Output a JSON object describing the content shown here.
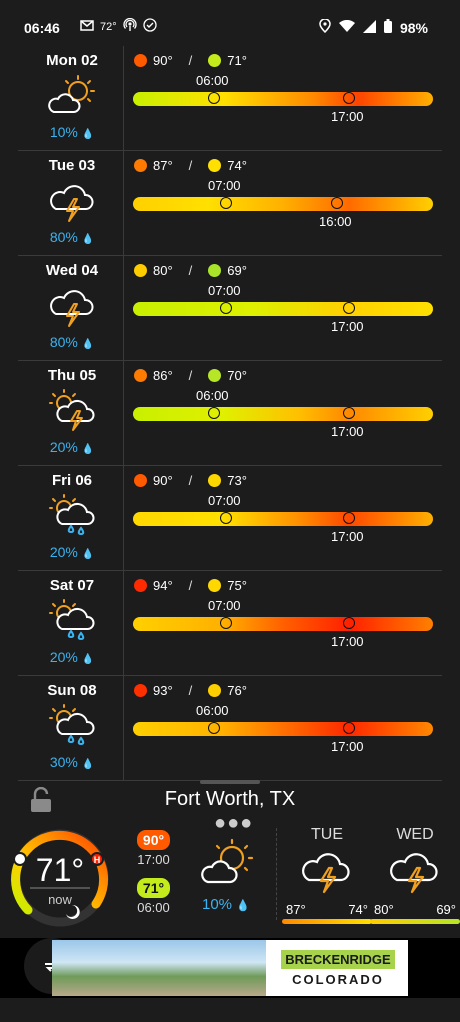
{
  "status": {
    "time": "06:46",
    "temp": "72°",
    "battery": "98%"
  },
  "days": [
    {
      "label": "Mon 02",
      "icon": "partly-sunny-icon",
      "precip": "10%",
      "high": "90°",
      "low": "71°",
      "high_color": "#ff5a00",
      "low_color": "#c4ec1c",
      "sunrise": "06:00",
      "sunset": "17:00",
      "sr_frac": 0.27,
      "ss_frac": 0.72,
      "bar": "linear-gradient(90deg,#c8f000 0%,#ffe000 30%,#ff8a00 60%,#ff4400 75%,#ffb000 100%)"
    },
    {
      "label": "Tue 03",
      "icon": "thunderstorm-icon",
      "precip": "80%",
      "high": "87°",
      "low": "74°",
      "high_color": "#ff7a00",
      "low_color": "#ffe000",
      "sunrise": "07:00",
      "sunset": "16:00",
      "sr_frac": 0.31,
      "ss_frac": 0.68,
      "bar": "linear-gradient(90deg,#ffd000 0%,#ffe000 25%,#ffb000 50%,#ff6a00 72%,#ffd000 100%)"
    },
    {
      "label": "Wed 04",
      "icon": "thunderstorm-icon",
      "precip": "80%",
      "high": "80°",
      "low": "69°",
      "high_color": "#ffcc00",
      "low_color": "#a9e42a",
      "sunrise": "07:00",
      "sunset": "17:00",
      "sr_frac": 0.31,
      "ss_frac": 0.72,
      "bar": "linear-gradient(90deg,#c8f000 0%,#ddf000 40%,#ffd000 70%,#ffe000 100%)"
    },
    {
      "label": "Thu 05",
      "icon": "sun-thunderstorm-icon",
      "precip": "20%",
      "high": "86°",
      "low": "70°",
      "high_color": "#ff7a00",
      "low_color": "#b6e626",
      "sunrise": "06:00",
      "sunset": "17:00",
      "sr_frac": 0.27,
      "ss_frac": 0.72,
      "bar": "linear-gradient(90deg,#c8f000 0%,#e0f000 30%,#ffc000 55%,#ff8800 72%,#ffd000 100%)"
    },
    {
      "label": "Fri 06",
      "icon": "sun-rain-icon",
      "precip": "20%",
      "high": "90°",
      "low": "73°",
      "high_color": "#ff5a00",
      "low_color": "#ffd800",
      "sunrise": "07:00",
      "sunset": "17:00",
      "sr_frac": 0.31,
      "ss_frac": 0.72,
      "bar": "linear-gradient(90deg,#ffd800 0%,#ffe000 30%,#ff9000 55%,#ff4800 72%,#ffb000 100%)"
    },
    {
      "label": "Sat 07",
      "icon": "sun-rain-icon",
      "precip": "20%",
      "high": "94°",
      "low": "75°",
      "high_color": "#ff2a00",
      "low_color": "#ffd800",
      "sunrise": "07:00",
      "sunset": "17:00",
      "sr_frac": 0.31,
      "ss_frac": 0.72,
      "bar": "linear-gradient(90deg,#ffd000 0%,#ffb000 30%,#ff6000 50%,#ff2000 72%,#ff8000 100%)"
    },
    {
      "label": "Sun 08",
      "icon": "sun-rain-icon",
      "precip": "30%",
      "high": "93°",
      "low": "76°",
      "high_color": "#ff3000",
      "low_color": "#ffd000",
      "sunrise": "06:00",
      "sunset": "17:00",
      "sr_frac": 0.27,
      "ss_frac": 0.72,
      "bar": "linear-gradient(90deg,#ffd000 0%,#ffb000 30%,#ff6000 55%,#ff2800 72%,#ff8800 100%)"
    }
  ],
  "location": "Fort Worth, TX",
  "current": {
    "temp": "71°",
    "label": "now",
    "gauge_level": 0.8
  },
  "today": {
    "high": "90°",
    "high_time": "17:00",
    "high_color": "#ff5a00",
    "low": "71°",
    "low_time": "06:00",
    "low_color": "#c4ec1c",
    "precip": "10%"
  },
  "forecast": [
    {
      "name": "TUE",
      "high": "87°",
      "low": "74°",
      "bar": "linear-gradient(90deg,#ff8a00,#ffe000)"
    },
    {
      "name": "WED",
      "high": "80°",
      "low": "69°",
      "bar": "linear-gradient(90deg,#ffcc00,#b6e626)"
    }
  ],
  "ad": {
    "brand_line1": "BRECKENRIDGE",
    "brand_line2": "COLORADO"
  }
}
